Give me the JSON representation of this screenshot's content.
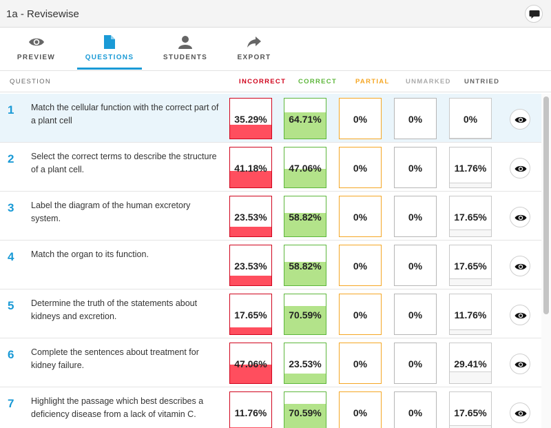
{
  "window": {
    "title": "1a - Revisewise"
  },
  "tabs": [
    {
      "label": "PREVIEW",
      "icon": "eye-icon",
      "active": false
    },
    {
      "label": "QUESTIONS",
      "icon": "document-icon",
      "active": true
    },
    {
      "label": "STUDENTS",
      "icon": "person-icon",
      "active": false
    },
    {
      "label": "EXPORT",
      "icon": "share-arrow-icon",
      "active": false
    }
  ],
  "headers": {
    "question": "QUESTION",
    "incorrect": "INCORRECT",
    "correct": "CORRECT",
    "partial": "PARTIAL",
    "unmarked": "UNMARKED",
    "untried": "UNTRIED"
  },
  "colors": {
    "accent": "#1a9ad6",
    "incorrect": "#d0021b",
    "correct": "#5cb63a",
    "partial": "#f5a623",
    "unmarked": "#aaaaaa"
  },
  "questions": [
    {
      "number": "1",
      "text": "Match the cellular function with the correct part of a plant cell",
      "incorrect": "35.29%",
      "correct": "64.71%",
      "partial": "0%",
      "unmarked": "0%",
      "untried": "0%"
    },
    {
      "number": "2",
      "text": "Select the correct terms to describe the structure of a plant cell.",
      "incorrect": "41.18%",
      "correct": "47.06%",
      "partial": "0%",
      "unmarked": "0%",
      "untried": "11.76%"
    },
    {
      "number": "3",
      "text": "Label the diagram of the human excretory system.",
      "incorrect": "23.53%",
      "correct": "58.82%",
      "partial": "0%",
      "unmarked": "0%",
      "untried": "17.65%"
    },
    {
      "number": "4",
      "text": "Match the organ to its function.",
      "incorrect": "23.53%",
      "correct": "58.82%",
      "partial": "0%",
      "unmarked": "0%",
      "untried": "17.65%"
    },
    {
      "number": "5",
      "text": "Determine the truth of the statements  about kidneys and excretion.",
      "incorrect": "17.65%",
      "correct": "70.59%",
      "partial": "0%",
      "unmarked": "0%",
      "untried": "11.76%"
    },
    {
      "number": "6",
      "text": "Complete the sentences about treatment for kidney failure.",
      "incorrect": "47.06%",
      "correct": "23.53%",
      "partial": "0%",
      "unmarked": "0%",
      "untried": "29.41%"
    },
    {
      "number": "7",
      "text": "Highlight the passage which best describes a deficiency disease from a lack of vitamin C.",
      "incorrect": "11.76%",
      "correct": "70.59%",
      "partial": "0%",
      "unmarked": "0%",
      "untried": "17.65%"
    }
  ]
}
